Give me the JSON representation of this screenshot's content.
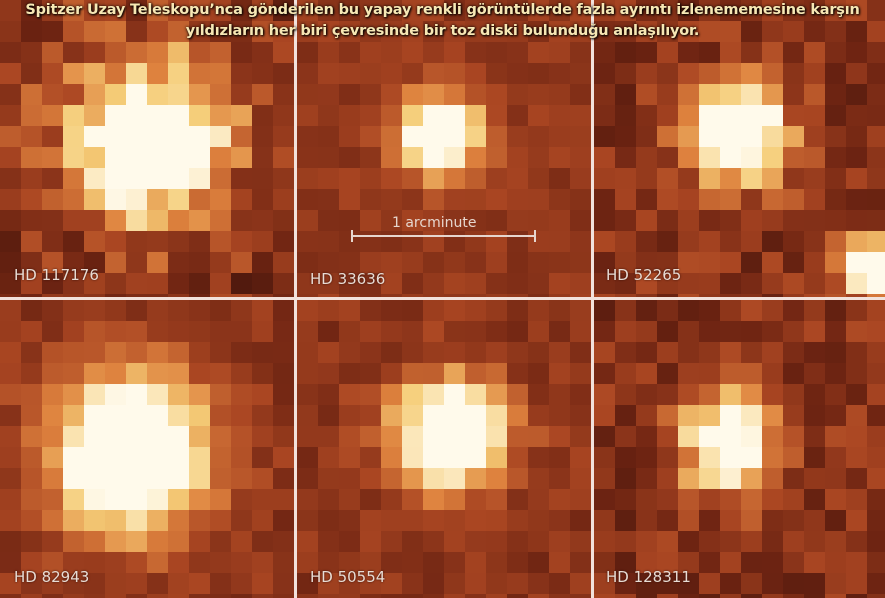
{
  "caption": [
    "Spitzer Uzay Teleskopu’nca gönderilen bu yapay renkli görüntülerde fazla ayrıntı izlenememesine karşın",
    "yıldızların her biri çevresinde bir toz diski bulunduğu anlaşılıyor."
  ],
  "panels": [
    {
      "label": "HD 117176"
    },
    {
      "label": "HD 33636"
    },
    {
      "label": "HD 52265"
    },
    {
      "label": "HD 82943"
    },
    {
      "label": "HD 50554"
    },
    {
      "label": "HD 128311"
    }
  ],
  "scale_bar": {
    "label": "1 arcminute"
  }
}
